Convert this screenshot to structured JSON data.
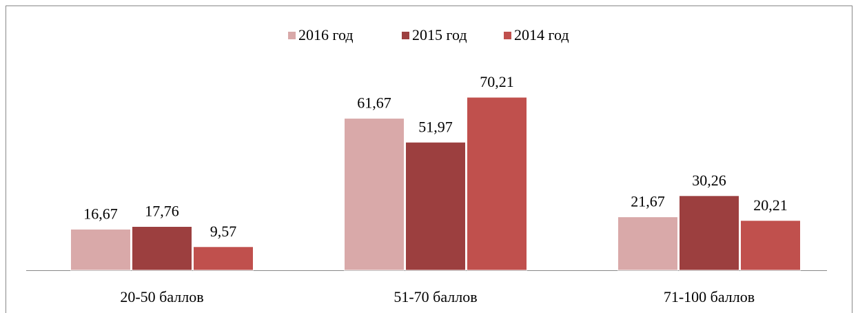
{
  "chart_data": {
    "type": "bar",
    "categories": [
      "20-50 баллов",
      "51-70 баллов",
      "71-100 баллов"
    ],
    "series": [
      {
        "name": "2016 год",
        "color": "#d9a9a9",
        "values": [
          16.67,
          61.67,
          21.67
        ],
        "value_labels": [
          "16,67",
          "61,67",
          "21,67"
        ]
      },
      {
        "name": "2015 год",
        "color": "#9c3f3f",
        "values": [
          17.76,
          51.97,
          30.26
        ],
        "value_labels": [
          "17,76",
          "51,97",
          "30,26"
        ]
      },
      {
        "name": "2014 год",
        "color": "#c0504d",
        "values": [
          9.57,
          70.21,
          20.21
        ],
        "value_labels": [
          "9,57",
          "70,21",
          "20,21"
        ]
      }
    ],
    "legend": "top"
  }
}
